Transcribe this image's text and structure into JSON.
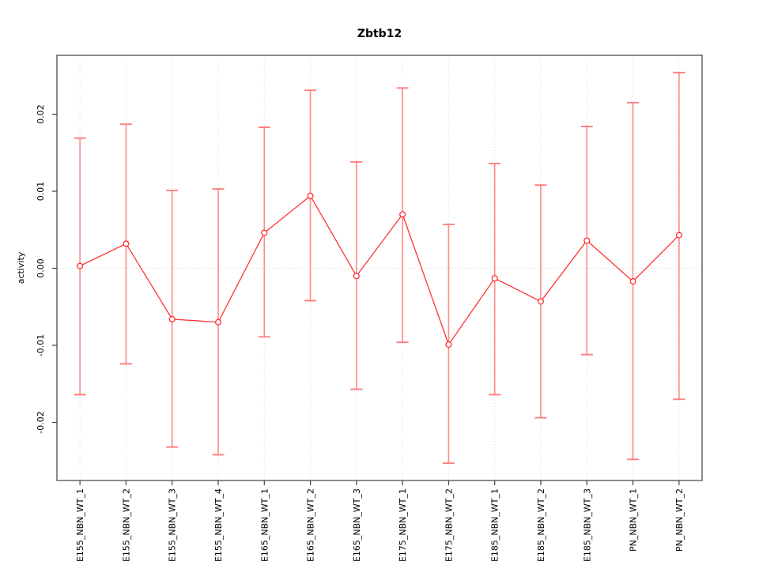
{
  "chart_data": {
    "type": "line",
    "title": "Zbtb12",
    "xlabel": "",
    "ylabel": "activity",
    "categories": [
      "E155_NBN_WT_1",
      "E155_NBN_WT_2",
      "E155_NBN_WT_3",
      "E155_NBN_WT_4",
      "E165_NBN_WT_1",
      "E165_NBN_WT_2",
      "E165_NBN_WT_3",
      "E175_NBN_WT_1",
      "E175_NBN_WT_2",
      "E185_NBN_WT_1",
      "E185_NBN_WT_2",
      "E185_NBN_WT_3",
      "PN_NBN_WT_1",
      "PN_NBN_WT_2"
    ],
    "series": [
      {
        "name": "activity",
        "values": [
          0.0003,
          0.0032,
          -0.0066,
          -0.007,
          0.0046,
          0.0094,
          -0.001,
          0.007,
          -0.0099,
          -0.0013,
          -0.0043,
          0.0036,
          -0.0017,
          0.0043
        ],
        "error_high": [
          0.0169,
          0.0187,
          0.0101,
          0.0103,
          0.0183,
          0.0231,
          0.0138,
          0.0234,
          0.0057,
          0.0136,
          0.0108,
          0.0184,
          0.0215,
          0.0254
        ],
        "error_low": [
          -0.0164,
          -0.0124,
          -0.0232,
          -0.0242,
          -0.0089,
          -0.0042,
          -0.0157,
          -0.0096,
          -0.0253,
          -0.0164,
          -0.0194,
          -0.0112,
          -0.0248,
          -0.017
        ]
      }
    ],
    "ylim": [
      -0.02754,
      0.02764
    ],
    "yticks": [
      -0.02,
      -0.01,
      0.0,
      0.01,
      0.02
    ],
    "ytick_labels": [
      "-0.02",
      "-0.01",
      "0.00",
      "0.01",
      "0.02"
    ],
    "grid": {
      "vertical_per_category": true,
      "horizontal_at_zero": true,
      "style": "dotted"
    },
    "legend": "none",
    "colors": {
      "line": "#ff3232",
      "point": "#ff3232",
      "error_bar": "#ff7d7d",
      "grid": "#d8d8d8",
      "axis": "#404040",
      "text": "#000000"
    }
  }
}
